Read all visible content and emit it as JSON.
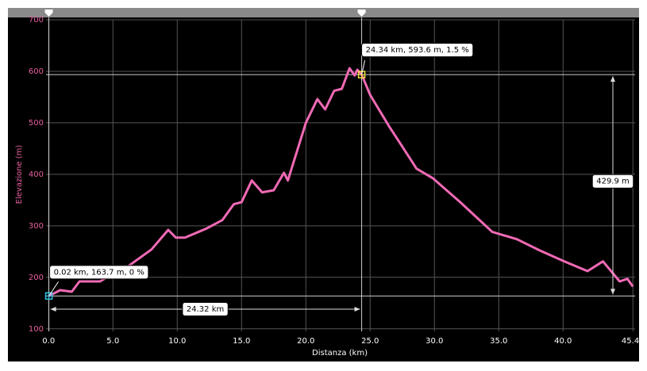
{
  "chart_data": {
    "type": "line",
    "y_label": "Elevazione (m)",
    "x_label": "Distanza (km)",
    "color": "#f06ab5",
    "x": [
      0.02,
      0.9,
      1.8,
      2.4,
      4.0,
      4.9,
      6.1,
      8.0,
      9.3,
      9.9,
      10.6,
      12.3,
      13.5,
      14.4,
      15.0,
      15.8,
      16.6,
      17.5,
      18.3,
      18.6,
      20.0,
      20.9,
      21.5,
      22.2,
      22.8,
      23.4,
      23.8,
      24.0,
      24.34,
      25.0,
      26.5,
      28.3,
      28.6,
      29.9,
      32.0,
      34.5,
      36.4,
      38.2,
      40.1,
      41.9,
      43.1,
      44.4,
      45.0,
      45.43
    ],
    "values": [
      163.7,
      175,
      172,
      192,
      192,
      205,
      220,
      254,
      292,
      277,
      277,
      295,
      311,
      342,
      346,
      388,
      365,
      369,
      403,
      388,
      500,
      546,
      526,
      562,
      566,
      606,
      592,
      603,
      593.6,
      554,
      492,
      423,
      411,
      392,
      346,
      288,
      274,
      252,
      231,
      212,
      231,
      192,
      197,
      182
    ],
    "xlim": [
      -0.2,
      45.6
    ],
    "ylim": [
      95,
      700
    ],
    "xticks": [
      {
        "value": 0,
        "label": "0.0"
      },
      {
        "value": 5,
        "label": "5.0"
      },
      {
        "value": 10,
        "label": "10.0"
      },
      {
        "value": 15,
        "label": "15.0"
      },
      {
        "value": 20,
        "label": "20.0"
      },
      {
        "value": 25,
        "label": "25.0"
      },
      {
        "value": 30,
        "label": "30.0"
      },
      {
        "value": 35,
        "label": "35.0"
      },
      {
        "value": 40,
        "label": "40.0"
      },
      45.43
    ],
    "yticks": [
      100,
      200,
      300,
      400,
      500,
      600,
      700
    ],
    "grid": true,
    "start_point": {
      "x": 0.02,
      "y": 163.7,
      "label": "0.02 km, 163.7 m, 0 %",
      "color": "#31c6e8"
    },
    "selected_point": {
      "x": 24.34,
      "y": 593.6,
      "label": "24.34 km, 593.6 m, 1.5 %",
      "color": "#f2e23c"
    },
    "measure_distance": "24.32 km",
    "measure_elevation": "429.9 m"
  }
}
